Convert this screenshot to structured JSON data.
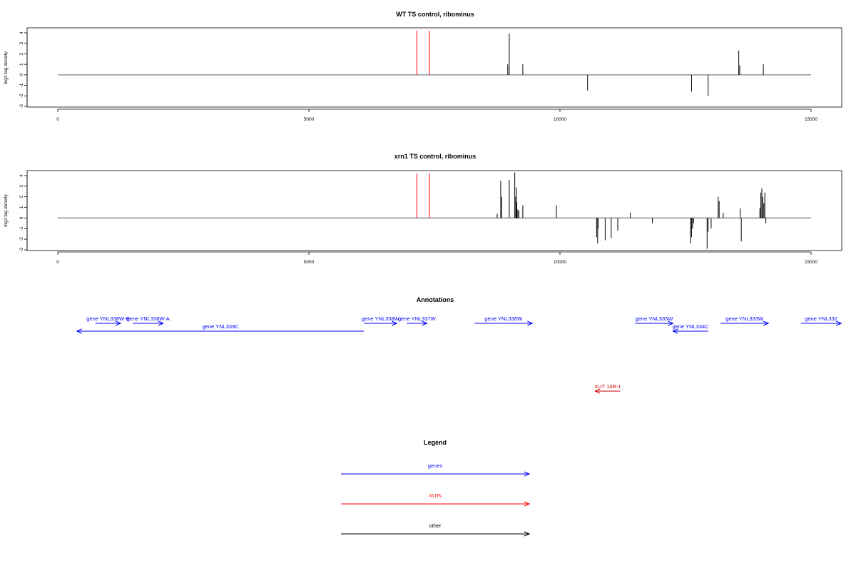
{
  "chart_data": [
    {
      "type": "bar",
      "title": "WT TS control, ribominus",
      "ylabel": "log2 tag density",
      "xlim": [
        0,
        15000
      ],
      "ylim": [
        -3,
        4
      ],
      "x_ticks": [
        "0",
        "5000",
        "10000",
        "15000"
      ],
      "y_ticks": [
        "-3",
        "-2",
        "-1",
        "0",
        "1",
        "2",
        "3",
        "4"
      ],
      "baseline": {
        "x": [
          0,
          15000
        ],
        "y": 0,
        "color": "#808080"
      },
      "markers": {
        "x": [
          7150,
          7400
        ],
        "color": "#ff0000"
      },
      "spikes": {
        "x": [
          8960,
          8990,
          9260,
          10550,
          12620,
          12950,
          13560,
          13580,
          14050
        ],
        "y": [
          1.0,
          3.9,
          1.0,
          -1.5,
          -1.6,
          -2.0,
          2.3,
          0.9,
          1.0
        ],
        "color": "#000000"
      }
    },
    {
      "type": "bar",
      "title": "xrn1 TS control, ribominus",
      "ylabel": "log2 tag density",
      "xlim": [
        0,
        15000
      ],
      "ylim": [
        -3,
        4
      ],
      "x_ticks": [
        "0",
        "5000",
        "10000",
        "15000"
      ],
      "y_ticks": [
        "-3",
        "-2",
        "-1",
        "0",
        "1",
        "2",
        "3",
        "4"
      ],
      "baseline": {
        "x": [
          0,
          15000
        ],
        "y": 0,
        "color": "#808080"
      },
      "markers": {
        "x": [
          7150,
          7400
        ],
        "color": "#ff0000"
      },
      "spikes": {
        "x": [
          8750,
          8820,
          8840,
          8990,
          9100,
          9120,
          9130,
          9140,
          9160,
          9180,
          9260,
          9930,
          10730,
          10750,
          10760,
          10900,
          11020,
          11150,
          11400,
          11840,
          12600,
          12620,
          12640,
          12660,
          12930,
          12950,
          13010,
          13150,
          13170,
          13250,
          13590,
          13610,
          13980,
          14000,
          14020,
          14040,
          14060,
          14080,
          14100
        ],
        "y": [
          0.4,
          3.5,
          2.0,
          3.6,
          4.3,
          2.0,
          2.9,
          1.5,
          0.8,
          0.7,
          1.2,
          1.2,
          -1.8,
          -2.4,
          -1.0,
          -2.1,
          -1.9,
          -1.2,
          0.5,
          -0.5,
          -2.4,
          -1.8,
          -1.0,
          -0.5,
          -2.9,
          -1.3,
          -1.0,
          2.0,
          1.6,
          0.5,
          0.9,
          -2.2,
          0.9,
          2.4,
          2.8,
          2.0,
          1.4,
          2.4,
          -0.5
        ],
        "color": "#000000"
      }
    }
  ],
  "annotations": {
    "title": "Annotations",
    "xlim": [
      0,
      15000
    ],
    "items": [
      {
        "label": "gene YNL338W-B",
        "type": "gene",
        "x_start": 750,
        "x_end": 1250,
        "row": 0
      },
      {
        "label": "gene YNL338W-A",
        "type": "gene",
        "x_start": 1500,
        "x_end": 2100,
        "row": 0
      },
      {
        "label": "gene YNL339C",
        "type": "gene",
        "x_start": 6100,
        "x_end": 380,
        "row": 1
      },
      {
        "label": "gene YNL338W",
        "type": "gene",
        "x_start": 6100,
        "x_end": 6750,
        "row": 0
      },
      {
        "label": "gene YNL337W",
        "type": "gene",
        "x_start": 6950,
        "x_end": 7350,
        "row": 0
      },
      {
        "label": "gene YNL336W",
        "type": "gene",
        "x_start": 8300,
        "x_end": 9450,
        "row": 0
      },
      {
        "label": "gene YNL335W",
        "type": "gene",
        "x_start": 11500,
        "x_end": 12250,
        "row": 0
      },
      {
        "label": "gene YNL334C",
        "type": "gene",
        "x_start": 12950,
        "x_end": 12250,
        "row": 1
      },
      {
        "label": "gene YNL333W",
        "type": "gene",
        "x_start": 13200,
        "x_end": 14150,
        "row": 0
      },
      {
        "label": "gene YNL332",
        "type": "gene",
        "x_start": 14800,
        "x_end": 15600,
        "row": 0
      },
      {
        "label": "XUT 14R-1",
        "type": "xut",
        "x_start": 11200,
        "x_end": 10700,
        "row": 2
      }
    ]
  },
  "legend": {
    "title": "Legend",
    "entries": [
      {
        "label": "genes",
        "color": "#0000ff"
      },
      {
        "label": "XUTs",
        "color": "#ff0000"
      },
      {
        "label": "other",
        "color": "#000000"
      }
    ]
  },
  "colors": {
    "gene": "#0000ff",
    "xut": "#cc0000",
    "axis": "#000000",
    "baseline": "#808080"
  }
}
